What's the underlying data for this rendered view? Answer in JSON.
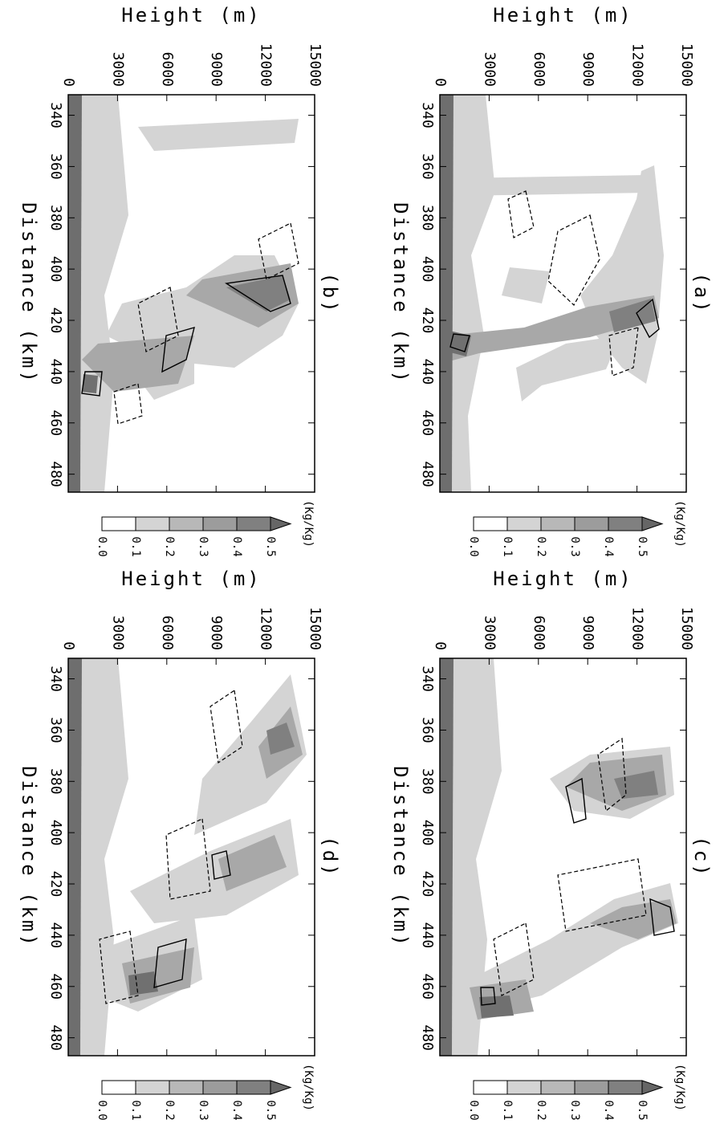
{
  "chart_data": [
    {
      "type": "contour",
      "title": "(a)",
      "xlabel": "Distance (km)",
      "ylabel": "Height (m)",
      "xlim": [
        332,
        487
      ],
      "xticks": [
        340,
        360,
        380,
        400,
        420,
        440,
        460,
        480
      ],
      "ylim": [
        0,
        15000
      ],
      "yticks": [
        0,
        3000,
        6000,
        9000,
        12000,
        15000
      ],
      "colorbar": {
        "label": "(Kg/Kg)",
        "colors": [
          "#ffffff",
          "#d4d4d4",
          "#b8b8b8",
          "#9c9c9c",
          "#808080",
          "#666666"
        ],
        "levels": [
          {
            "value": 0,
            "label": "0.0"
          },
          {
            "value": 0.1,
            "label": "0.1"
          },
          {
            "value": 0.2,
            "label": "0.2"
          },
          {
            "value": 0.3,
            "label": "0.3"
          },
          {
            "value": 0.4,
            "label": "0.4"
          },
          {
            "value": 0.5,
            "label": "0.5"
          }
        ]
      }
    },
    {
      "type": "contour",
      "title": "(b)",
      "xlabel": "Distance (km)",
      "ylabel": "Height (m)",
      "xlim": [
        332,
        487
      ],
      "xticks": [
        340,
        360,
        380,
        400,
        420,
        440,
        460,
        480
      ],
      "ylim": [
        0,
        15000
      ],
      "yticks": [
        0,
        3000,
        6000,
        9000,
        12000,
        15000
      ],
      "colorbar": {
        "label": "(Kg/Kg)",
        "colors": [
          "#ffffff",
          "#d4d4d4",
          "#b8b8b8",
          "#9c9c9c",
          "#808080",
          "#666666"
        ],
        "levels": [
          {
            "value": 0,
            "label": "0.0"
          },
          {
            "value": 0.1,
            "label": "0.1"
          },
          {
            "value": 0.2,
            "label": "0.2"
          },
          {
            "value": 0.3,
            "label": "0.3"
          },
          {
            "value": 0.4,
            "label": "0.4"
          },
          {
            "value": 0.5,
            "label": "0.5"
          }
        ]
      }
    },
    {
      "type": "contour",
      "title": "(c)",
      "xlabel": "Distance (km)",
      "ylabel": "Height (m)",
      "xlim": [
        332,
        487
      ],
      "xticks": [
        340,
        360,
        380,
        400,
        420,
        440,
        460,
        480
      ],
      "ylim": [
        0,
        15000
      ],
      "yticks": [
        0,
        3000,
        6000,
        9000,
        12000,
        15000
      ],
      "colorbar": {
        "label": "(Kg/Kg)",
        "colors": [
          "#ffffff",
          "#d4d4d4",
          "#b8b8b8",
          "#9c9c9c",
          "#808080",
          "#666666"
        ],
        "levels": [
          {
            "value": 0,
            "label": "0.0"
          },
          {
            "value": 0.1,
            "label": "0.1"
          },
          {
            "value": 0.2,
            "label": "0.2"
          },
          {
            "value": 0.3,
            "label": "0.3"
          },
          {
            "value": 0.4,
            "label": "0.4"
          },
          {
            "value": 0.5,
            "label": "0.5"
          }
        ]
      }
    },
    {
      "type": "contour",
      "title": "(d)",
      "xlabel": "Distance (km)",
      "ylabel": "Height (m)",
      "xlim": [
        332,
        487
      ],
      "xticks": [
        340,
        360,
        380,
        400,
        420,
        440,
        460,
        480
      ],
      "ylim": [
        0,
        15000
      ],
      "yticks": [
        0,
        3000,
        6000,
        9000,
        12000,
        15000
      ],
      "colorbar": {
        "label": "(Kg/Kg)",
        "colors": [
          "#ffffff",
          "#d4d4d4",
          "#b8b8b8",
          "#9c9c9c",
          "#808080",
          "#666666"
        ],
        "levels": [
          {
            "value": 0,
            "label": "0.0"
          },
          {
            "value": 0.1,
            "label": "0.1"
          },
          {
            "value": 0.2,
            "label": "0.2"
          },
          {
            "value": 0.3,
            "label": "0.3"
          },
          {
            "value": 0.4,
            "label": "0.4"
          },
          {
            "value": 0.5,
            "label": "0.5"
          }
        ]
      }
    }
  ]
}
